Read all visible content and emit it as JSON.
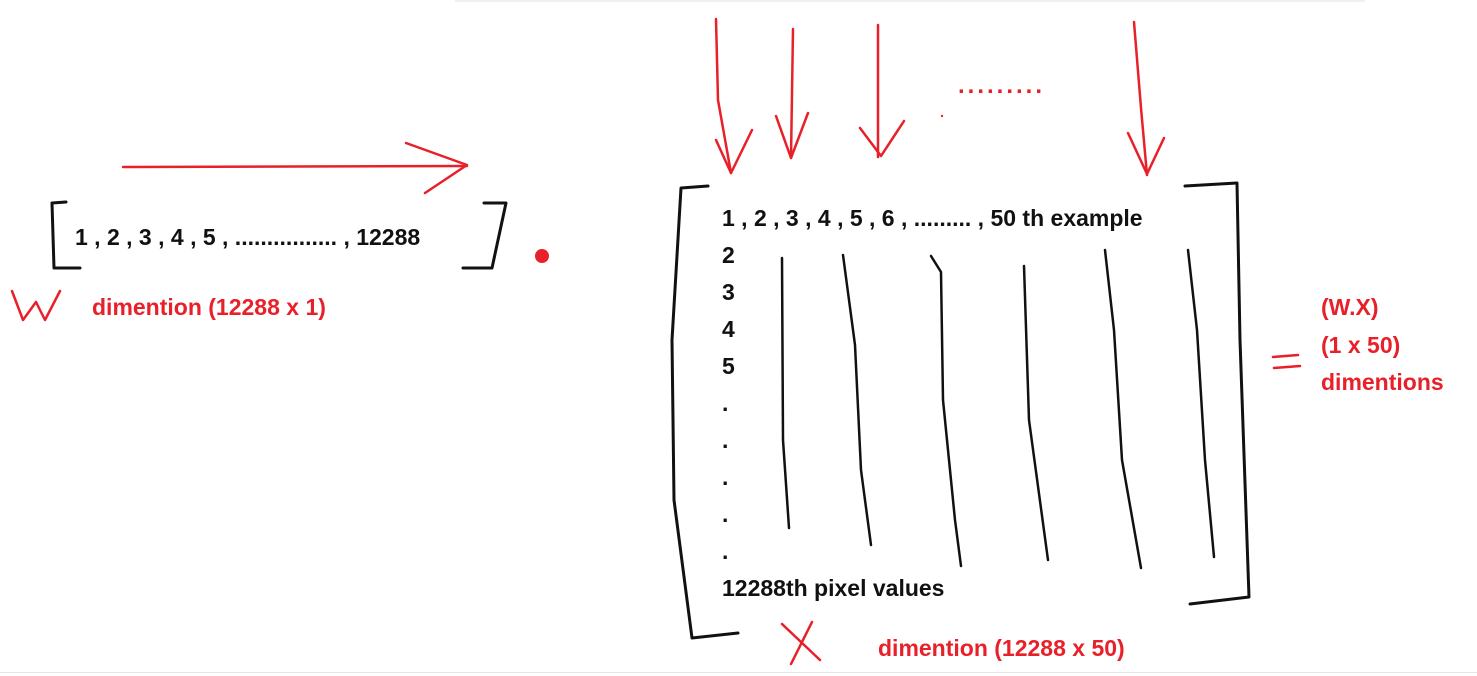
{
  "w_vector": {
    "symbol": "W",
    "contents": "1 , 2 , 3 , 4 , 5 , ................ , 12288",
    "dimension_label": "dimention (12288 x 1)"
  },
  "dot_operator": "•",
  "x_matrix": {
    "symbol": "X",
    "first_row": "1 , 2 , 3 , 4 , 5 , 6 , ......... , 50 th example",
    "column_entries": [
      "2",
      "3",
      "4",
      "5",
      ".",
      ".",
      ".",
      ".",
      "."
    ],
    "last_row": "12288th pixel values",
    "dimension_label": "dimention (12288 x 50)",
    "top_dots": "........."
  },
  "result": {
    "equals": "=",
    "line1": "(W.X)",
    "line2": "(1 x 50)",
    "line3": "dimentions"
  },
  "colors": {
    "annotation": "#e8202a",
    "ink": "#111111"
  }
}
